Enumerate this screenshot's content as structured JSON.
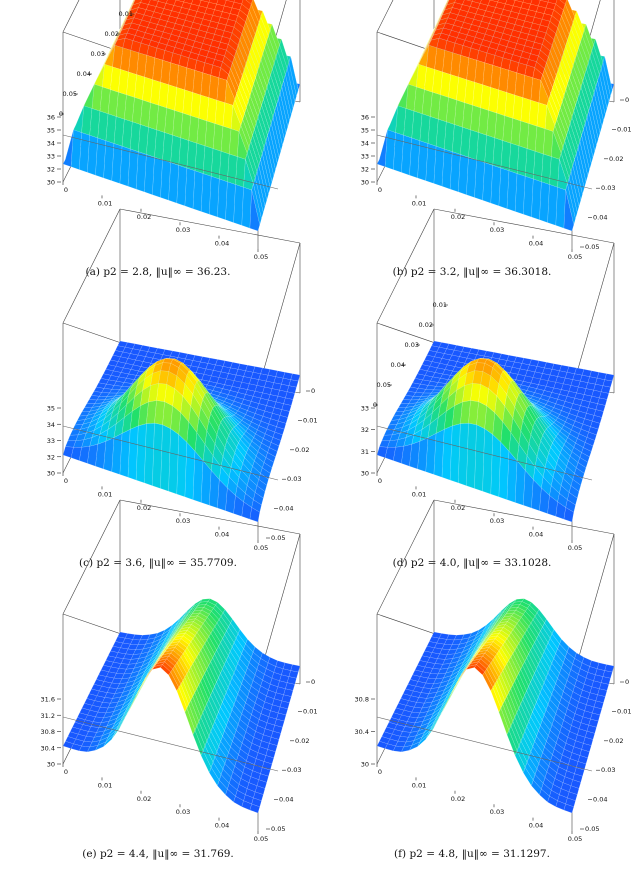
{
  "figure": {
    "panels": [
      {
        "label": "(a)",
        "caption": "(a)  p2 = 2.8, ‖u‖∞ = 36.23.",
        "p2": 2.8,
        "u_inf": 36.23,
        "peak_shape": "plateau",
        "z_ticks": [
          "36",
          "35",
          "34",
          "33",
          "32",
          "30"
        ],
        "front_ticks": [
          "0",
          "0.01",
          "0.02",
          "0.03",
          "0.04",
          "0.05"
        ],
        "side_axis": "back-left",
        "side_ticks": [
          "0.01",
          "0.02",
          "0.03",
          "0.04",
          "0.05",
          "0"
        ]
      },
      {
        "label": "(b)",
        "caption": "(b)  p2 = 3.2, ‖u‖∞ = 36.3018.",
        "p2": 3.2,
        "u_inf": 36.3018,
        "peak_shape": "plateau",
        "z_ticks": [
          "36",
          "35",
          "34",
          "33",
          "32",
          "30"
        ],
        "front_ticks": [
          "0",
          "0.01",
          "0.02",
          "0.03",
          "0.04",
          "0.05"
        ],
        "side_axis": "right",
        "side_ticks": [
          "0",
          "0.01",
          "0.02",
          "0.03",
          "0.04",
          "0.05"
        ]
      },
      {
        "label": "(c)",
        "caption": "(c)  p2 = 3.6, ‖u‖∞ = 35.7709.",
        "p2": 3.6,
        "u_inf": 35.7709,
        "peak_shape": "dome",
        "z_ticks": [
          "35",
          "34",
          "33",
          "32",
          "30"
        ],
        "front_ticks": [
          "0",
          "0.01",
          "0.02",
          "0.03",
          "0.04",
          "0.05"
        ],
        "side_axis": "right",
        "side_ticks": [
          "0",
          "0.01",
          "0.02",
          "0.03",
          "0.04",
          "0.05"
        ]
      },
      {
        "label": "(d)",
        "caption": "(d)  p2 = 4.0, ‖u‖∞ = 33.1028.",
        "p2": 4.0,
        "u_inf": 33.1028,
        "peak_shape": "dome",
        "z_ticks": [
          "33",
          "32",
          "31",
          "30"
        ],
        "front_ticks": [
          "0",
          "0.01",
          "0.02",
          "0.03",
          "0.04",
          "0.05"
        ],
        "side_axis": "back-left",
        "side_ticks": [
          "0.01",
          "0.02",
          "0.03",
          "0.04",
          "0.05",
          "0"
        ]
      },
      {
        "label": "(e)",
        "caption": "(e)  p2 = 4.4, ‖u‖∞ = 31.769.",
        "p2": 4.4,
        "u_inf": 31.769,
        "peak_shape": "ridge",
        "z_ticks": [
          "31.6",
          "31.2",
          "30.8",
          "30.4",
          "30"
        ],
        "front_ticks": [
          "0",
          "0.01",
          "0.02",
          "0.03",
          "0.04",
          "0.05"
        ],
        "side_axis": "right",
        "side_ticks": [
          "0",
          "0.01",
          "0.02",
          "0.03",
          "0.04",
          "0.05"
        ]
      },
      {
        "label": "(f)",
        "caption": "(f)  p2 = 4.8, ‖u‖∞ = 31.1297.",
        "p2": 4.8,
        "u_inf": 31.1297,
        "peak_shape": "ridge",
        "z_ticks": [
          "30.8",
          "30.4",
          "30"
        ],
        "front_ticks": [
          "0",
          "0.01",
          "0.02",
          "0.03",
          "0.04",
          "0.05"
        ],
        "side_axis": "right",
        "side_ticks": [
          "0",
          "0.01",
          "0.02",
          "0.03",
          "0.04",
          "0.05"
        ]
      }
    ],
    "colormap": [
      "#1e3cff",
      "#00c8ff",
      "#22e06a",
      "#ffff00",
      "#ff3000"
    ]
  }
}
